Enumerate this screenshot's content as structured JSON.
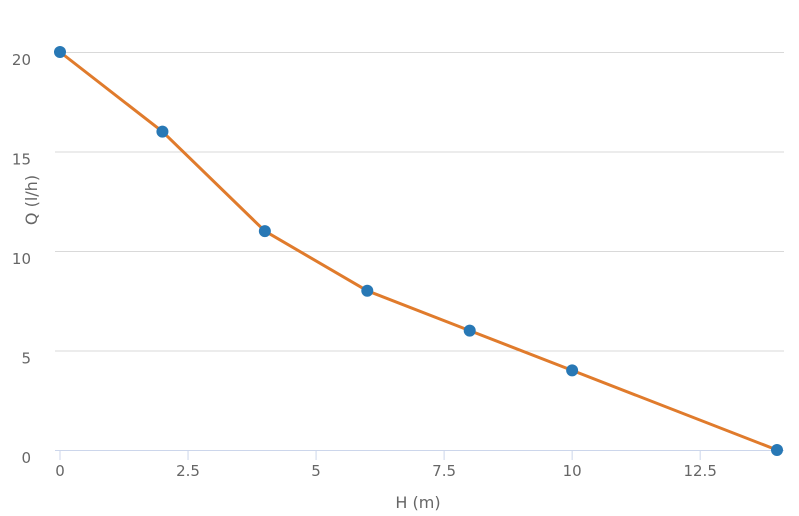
{
  "chart_data": {
    "type": "line",
    "title": "",
    "xlabel": "H (m)",
    "ylabel": "Q (l/h)",
    "xlim": [
      0,
      14
    ],
    "ylim": [
      0,
      20
    ],
    "xticks": [
      0,
      2.5,
      5,
      7.5,
      10,
      12.5
    ],
    "yticks": [
      0,
      5,
      10,
      15,
      20
    ],
    "grid": "horizontal",
    "legend": "none",
    "series": [
      {
        "x": [
          0,
          2,
          4,
          6,
          8,
          10,
          14
        ],
        "y": [
          20,
          16,
          11,
          8,
          6,
          4,
          0
        ],
        "line_color": "#e07b2c",
        "marker_color": "#2878b5"
      }
    ],
    "colors": {
      "grid": "#d9d9d9",
      "axis": "#ccd6eb",
      "text": "#666666"
    }
  }
}
